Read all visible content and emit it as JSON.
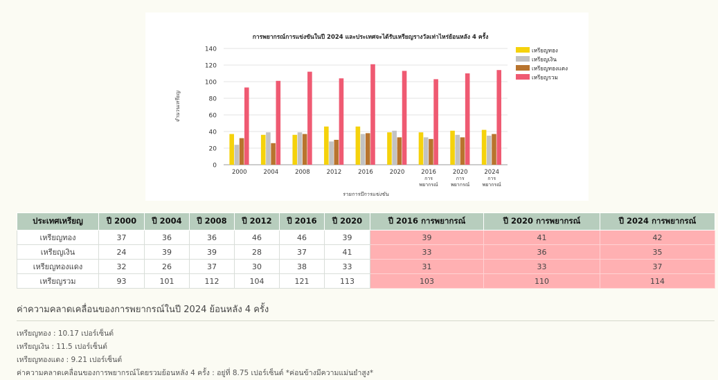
{
  "chart_data": {
    "type": "bar",
    "title": "การพยากรณ์การแข่งขันในปี 2024 และประเทศจะได้รับเหรียญรางวัลเท่าไหร่ย้อนหลัง 4 ครั้ง",
    "xlabel": "รายการปีการแข่งขัน",
    "ylabel": "จำนวนเหรียญ",
    "ylim": [
      0,
      140
    ],
    "yticks": [
      "0",
      "20",
      "40",
      "60",
      "80",
      "100",
      "120",
      "140"
    ],
    "grid": true,
    "legend_position": "right",
    "categories": [
      [
        "2000"
      ],
      [
        "2004"
      ],
      [
        "2008"
      ],
      [
        "2012"
      ],
      [
        "2016"
      ],
      [
        "2020"
      ],
      [
        "2016",
        "การ",
        "พยากรณ์"
      ],
      [
        "2020",
        "การ",
        "พยากรณ์"
      ],
      [
        "2024",
        "การ",
        "พยากรณ์"
      ]
    ],
    "series": [
      {
        "name": "เหรียญทอง",
        "color": "#f5d20c",
        "values": [
          37,
          36,
          36,
          46,
          46,
          39,
          39,
          41,
          42
        ]
      },
      {
        "name": "เหรียญเงิน",
        "color": "#c2c2c2",
        "values": [
          24,
          39,
          39,
          28,
          37,
          41,
          33,
          36,
          35
        ]
      },
      {
        "name": "เหรียญทองแดง",
        "color": "#b8742e",
        "values": [
          32,
          26,
          37,
          30,
          38,
          33,
          31,
          33,
          37
        ]
      },
      {
        "name": "เหรียญรวม",
        "color": "#ef5a72",
        "values": [
          93,
          101,
          112,
          104,
          121,
          113,
          103,
          110,
          114
        ]
      }
    ]
  },
  "table": {
    "headers": [
      "ประเทศเหรียญ",
      "ปี 2000",
      "ปี 2004",
      "ปี 2008",
      "ปี 2012",
      "ปี 2016",
      "ปี 2020",
      "ปี 2016 การพยากรณ์",
      "ปี 2020 การพยากรณ์",
      "ปี 2024 การพยากรณ์"
    ],
    "rows": [
      [
        "เหรียญทอง",
        "37",
        "36",
        "36",
        "46",
        "46",
        "39",
        "39",
        "41",
        "42"
      ],
      [
        "เหรียญเงิน",
        "24",
        "39",
        "39",
        "28",
        "37",
        "41",
        "33",
        "36",
        "35"
      ],
      [
        "เหรียญทองแดง",
        "32",
        "26",
        "37",
        "30",
        "38",
        "33",
        "31",
        "33",
        "37"
      ],
      [
        "เหรียญรวม",
        "93",
        "101",
        "112",
        "104",
        "121",
        "113",
        "103",
        "110",
        "114"
      ]
    ],
    "highlight_color": "#ffb0b2",
    "header_color": "#b7cdbd"
  },
  "deviation": {
    "title": "ค่าความคลาดเคลื่อนของการพยากรณ์ในปี 2024 ย้อนหลัง 4 ครั้ง",
    "lines": [
      "เหรียญทอง : 10.17 เปอร์เซ็นต์",
      "เหรียญเงิน : 11.5 เปอร์เซ็นต์",
      "เหรียญทองแดง : 9.21 เปอร์เซ็นต์",
      "ค่าความคลาดเคลื่อนของการพยากรณ์โดยรวมย้อนหลัง 4 ครั้ง : อยู่ที่ 8.75 เปอร์เซ็นต์ *ค่อนข้างมีความแม่นยำสูง*"
    ]
  }
}
